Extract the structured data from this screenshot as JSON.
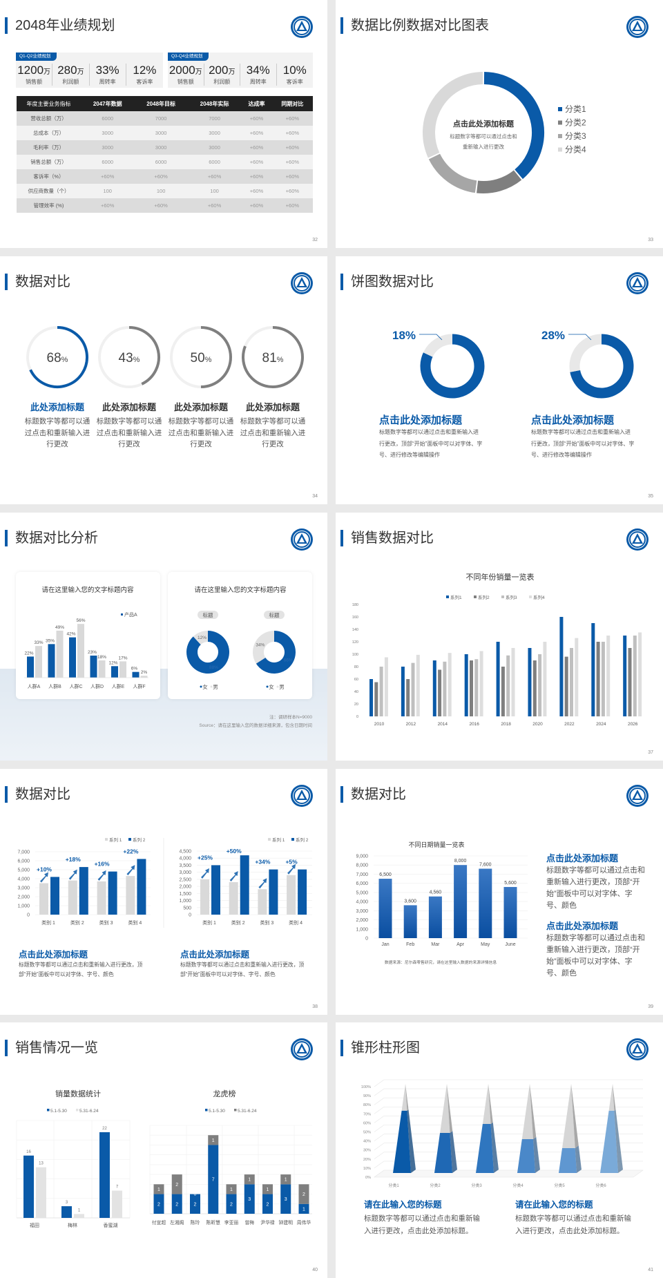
{
  "colors": {
    "blue": "#0a5aa8",
    "dark_gray": "#7f7f7f",
    "mid_gray": "#a6a6a6",
    "light_gray": "#d9d9d9",
    "track": "#f0f0f0"
  },
  "logo": {
    "icon": "school-emblem-logo"
  },
  "s32": {
    "title": "2048年业绩规划",
    "page": "32",
    "kpi_groups": [
      {
        "tag": "Q1-Q2业绩规划",
        "items": [
          {
            "value": "1200",
            "unit": "万",
            "label": "销售额"
          },
          {
            "value": "280",
            "unit": "万",
            "label": "利润额"
          },
          {
            "value": "33%",
            "unit": "",
            "label": "周转率"
          },
          {
            "value": "12%",
            "unit": "",
            "label": "客诉率"
          }
        ]
      },
      {
        "tag": "Q3-Q4业绩规划",
        "items": [
          {
            "value": "2000",
            "unit": "万",
            "label": "销售额"
          },
          {
            "value": "200",
            "unit": "万",
            "label": "利润额"
          },
          {
            "value": "34%",
            "unit": "",
            "label": "周转率"
          },
          {
            "value": "10%",
            "unit": "",
            "label": "客诉率"
          }
        ]
      }
    ],
    "table": {
      "headers": [
        "年度主要业务指标",
        "2047年数据",
        "2048年目标",
        "2048年实际",
        "达成率",
        "同期对比"
      ],
      "rows": [
        [
          "营收总额（万）",
          "6000",
          "7000",
          "7000",
          "+60%",
          "+60%"
        ],
        [
          "总成本（万）",
          "3000",
          "3000",
          "3000",
          "+60%",
          "+60%"
        ],
        [
          "毛利率（万）",
          "3000",
          "3000",
          "3000",
          "+60%",
          "+60%"
        ],
        [
          "销售总额（万）",
          "6000",
          "6000",
          "6000",
          "+60%",
          "+60%"
        ],
        [
          "客诉率（%）",
          "+60%",
          "+60%",
          "+60%",
          "+60%",
          "+60%"
        ],
        [
          "供应商数量（个）",
          "100",
          "100",
          "100",
          "+60%",
          "+60%"
        ],
        [
          "管理效率 (%)",
          "+60%",
          "+60%",
          "+60%",
          "+60%",
          "+60%"
        ]
      ]
    }
  },
  "s33": {
    "title": "数据比例数据对比图表",
    "page": "33",
    "center_title": "点击此处添加标题",
    "center_text_1": "标题数字等都可以通过点击和",
    "center_text_2": "重新输入进行更改"
  },
  "s34": {
    "title": "数据对比",
    "page": "34",
    "items": [
      {
        "value": "68",
        "unit": "%",
        "pct": 68,
        "title": "此处添加标题",
        "text": "标题数字等都可以通过点击和重新输入进行更改",
        "highlight": true
      },
      {
        "value": "43",
        "unit": "%",
        "pct": 43,
        "title": "此处添加标题",
        "text": "标题数字等都可以通过点击和重新输入进行更改",
        "highlight": false
      },
      {
        "value": "50",
        "unit": "%",
        "pct": 50,
        "title": "此处添加标题",
        "text": "标题数字等都可以通过点击和重新输入进行更改",
        "highlight": false
      },
      {
        "value": "81",
        "unit": "%",
        "pct": 81,
        "title": "此处添加标题",
        "text": "标题数字等都可以通过点击和重新输入进行更改",
        "highlight": false
      }
    ]
  },
  "s35": {
    "title": "饼图数据对比",
    "page": "35",
    "items": [
      {
        "label": "18%",
        "pct": 18,
        "title": "点击此处添加标题",
        "text": "标题数字等都可以通过点击和重新输入进行更改，顶部“开始”面板中可以对字体、字号、进行修改等编辑操作"
      },
      {
        "label": "28%",
        "pct": 28,
        "title": "点击此处添加标题",
        "text": "标题数字等都可以通过点击和重新输入进行更改，顶部“开始”面板中可以对字体、字号、进行修改等编辑操作"
      }
    ]
  },
  "s36": {
    "title": "数据对比分析",
    "page": "36",
    "card1_title": "请在这里输入您的文字标题内容",
    "card2_title": "请在这里输入您的文字标题内容",
    "pill1": "标题",
    "pill2": "标题",
    "note": "注：调研样本N=9000",
    "source": "Source：请在这里输入您的数据详细来源，包含日期时间"
  },
  "s37": {
    "title": "销售数据对比",
    "page": "37"
  },
  "s38": {
    "title": "数据对比",
    "page": "38",
    "left_title": "点击此处添加标题",
    "left_text": "标题数字等都可以通过点击和重新输入进行更改，顶部“开始”面板中可以对字体、字号、颜色",
    "right_title": "点击此处添加标题",
    "right_text": "标题数字等都可以通过点击和重新输入进行更改，顶部“开始”面板中可以对字体、字号、颜色"
  },
  "s39": {
    "title": "数据对比",
    "page": "39",
    "source": "数据来源：尼尔森零售研究，请在这里输入数据的来源详情信息",
    "blocks": [
      {
        "title": "点击此处添加标题",
        "text": "标题数字等都可以通过点击和重新输入进行更改，顶部“开始”面板中可以对字体、字号、颜色"
      },
      {
        "title": "点击此处添加标题",
        "text": "标题数字等都可以通过点击和重新输入进行更改，顶部“开始”面板中可以对字体、字号、颜色"
      }
    ]
  },
  "s40": {
    "title": "销售情况一览",
    "page": "40"
  },
  "s41": {
    "title": "锥形柱形图",
    "page": "41",
    "blocks": [
      {
        "title": "请在此输入您的标题",
        "text": "标题数字等都可以通过点击和重新输入进行更改，点击此处添加标题。"
      },
      {
        "title": "请在此输入您的标题",
        "text": "标题数字等都可以通过点击和重新输入进行更改，点击此处添加标题。"
      }
    ]
  },
  "chart_data": [
    {
      "type": "pie",
      "donut": true,
      "categories": [
        "分类1",
        "分类2",
        "分类3",
        "分类4"
      ],
      "values": [
        39,
        13,
        16,
        32
      ],
      "colors": [
        "#0a5aa8",
        "#7f7f7f",
        "#a6a6a6",
        "#d9d9d9"
      ],
      "legend": "right"
    },
    {
      "type": "bar",
      "title": "请在这里输入您的文字标题内容",
      "categories": [
        "人群A",
        "人群B",
        "人群C",
        "人群D",
        "人群E",
        "人群F"
      ],
      "series": [
        {
          "name": "产品A",
          "values": [
            22,
            35,
            42,
            23,
            12,
            6
          ],
          "labels": [
            "22%",
            "35%",
            "42%",
            "23%",
            "12%",
            "6%"
          ],
          "color": "#0a5aa8"
        },
        {
          "values": [
            33,
            49,
            56,
            18,
            17,
            2
          ],
          "labels": [
            "33%",
            "49%",
            "56%",
            "18%",
            "17%",
            "2%"
          ],
          "color": "#d9d9d9"
        }
      ],
      "unit": "%",
      "legend": "top-right",
      "grid": false
    },
    {
      "type": "pie",
      "donut": true,
      "categories": [
        "女",
        "男"
      ],
      "values": [
        88,
        12
      ],
      "labels": [
        "88%",
        "12%"
      ],
      "colors": [
        "#0a5aa8",
        "#e3e3e3"
      ],
      "legend": "bottom"
    },
    {
      "type": "pie",
      "donut": true,
      "categories": [
        "女",
        "男"
      ],
      "values": [
        66,
        34
      ],
      "labels": [
        "66%",
        "34%"
      ],
      "colors": [
        "#0a5aa8",
        "#e3e3e3"
      ],
      "legend": "bottom"
    },
    {
      "type": "bar",
      "title": "不同年份销量一览表",
      "categories": [
        "2010",
        "2012",
        "2014",
        "2016",
        "2018",
        "2020",
        "2022",
        "2024",
        "2026"
      ],
      "series": [
        {
          "name": "系列1",
          "values": [
            60,
            80,
            90,
            100,
            120,
            110,
            160,
            150,
            130
          ],
          "color": "#0a5aa8"
        },
        {
          "name": "系列2",
          "values": [
            55,
            60,
            75,
            90,
            80,
            90,
            96,
            120,
            110
          ],
          "color": "#7f7f7f"
        },
        {
          "name": "系列3",
          "values": [
            80,
            86,
            88,
            92,
            98,
            100,
            110,
            120,
            130
          ],
          "color": "#bfbfbf"
        },
        {
          "name": "系列4",
          "values": [
            95,
            99,
            102,
            105,
            110,
            120,
            126,
            130,
            135
          ],
          "color": "#dedede"
        }
      ],
      "ylim": [
        0,
        180
      ],
      "yticks": [
        "0",
        "20",
        "40",
        "60",
        "80",
        "100",
        "120",
        "140",
        "160",
        "180"
      ],
      "legend": "top",
      "grid": false
    },
    {
      "type": "bar",
      "categories": [
        "类别 1",
        "类别 2",
        "类别 3",
        "类别 4"
      ],
      "series": [
        {
          "name": "系列 1",
          "values": [
            3500,
            3800,
            3700,
            4300
          ],
          "color": "#d9d9d9"
        },
        {
          "name": "系列 2",
          "values": [
            4200,
            5300,
            4800,
            6200
          ],
          "color": "#0a5aa8"
        }
      ],
      "annotations": [
        "+10%",
        "+18%",
        "+16%",
        "+22%"
      ],
      "ylim": [
        0,
        7000
      ],
      "yticks": [
        "0",
        "1,000",
        "2,000",
        "3,000",
        "4,000",
        "5,000",
        "6,000",
        "7,000"
      ],
      "legend": "top-right",
      "grid": true
    },
    {
      "type": "bar",
      "categories": [
        "类别 1",
        "类别 2",
        "类别 3",
        "类别 4"
      ],
      "series": [
        {
          "name": "系列 1",
          "values": [
            2500,
            2300,
            1800,
            2800
          ],
          "color": "#d9d9d9"
        },
        {
          "name": "系列 2",
          "values": [
            3500,
            4200,
            3200,
            3200
          ],
          "color": "#0a5aa8"
        }
      ],
      "annotations": [
        "+25%",
        "+50%",
        "+34%",
        "+5%"
      ],
      "ylim": [
        0,
        4500
      ],
      "yticks": [
        "0",
        "500",
        "1,000",
        "1,500",
        "2,000",
        "2,500",
        "3,000",
        "3,500",
        "4,000",
        "4,500"
      ],
      "legend": "top-right",
      "grid": true
    },
    {
      "type": "bar",
      "title": "不同日期销量一览表",
      "categories": [
        "Jan",
        "Feb",
        "Mar",
        "Apr",
        "May",
        "June"
      ],
      "series": [
        {
          "values": [
            6500,
            3600,
            4560,
            8000,
            7600,
            5600
          ],
          "labels": [
            "6,500",
            "3,600",
            "4,560",
            "8,000",
            "7,600",
            "5,600"
          ],
          "color": "#0a5aa8"
        }
      ],
      "ylim": [
        0,
        9000
      ],
      "yticks": [
        "0",
        "1,000",
        "2,000",
        "3,000",
        "4,000",
        "5,000",
        "6,000",
        "7,000",
        "8,000",
        "9,000"
      ],
      "grid": true
    },
    {
      "type": "bar",
      "title": "销量数据统计",
      "categories": [
        "福田",
        "梅林",
        "香蜜湖"
      ],
      "series": [
        {
          "name": "5.1-5.30",
          "values": [
            16,
            3,
            22
          ],
          "color": "#0a5aa8"
        },
        {
          "name": "5.31-6.24",
          "values": [
            13,
            1,
            7
          ],
          "color": "#e3e3e3"
        }
      ],
      "ylim": [
        0,
        25
      ],
      "legend": "top",
      "grid": true
    },
    {
      "type": "bar",
      "stacked": true,
      "title": "龙虎榜",
      "categories": [
        "付宣超",
        "左湘阁",
        "陈玲",
        "陈昕慧",
        "李亚丽",
        "曾梅",
        "尹华禄",
        "钟建明",
        "周伟华"
      ],
      "series": [
        {
          "name": "5.1-5.30",
          "values": [
            2,
            2,
            2,
            7,
            2,
            3,
            2,
            3,
            1
          ],
          "color": "#0a5aa8"
        },
        {
          "name": "5.31-6.24",
          "values": [
            1,
            2,
            0,
            1,
            1,
            1,
            1,
            1,
            2
          ],
          "color": "#7f7f7f"
        }
      ],
      "ylim": [
        0,
        9
      ],
      "legend": "top",
      "grid": true
    },
    {
      "type": "bar",
      "shape": "cone",
      "categories": [
        "分类1",
        "分类2",
        "分类3",
        "分类4",
        "分类5",
        "分类6"
      ],
      "values": [
        70,
        45,
        55,
        38,
        28,
        70
      ],
      "colors": [
        "#0a5aa8",
        "#1f68b4",
        "#2f76bf",
        "#4a88c9",
        "#5f97d1",
        "#7aaad8"
      ],
      "ylim": [
        0,
        100
      ],
      "yticks": [
        "0%",
        "10%",
        "20%",
        "30%",
        "40%",
        "50%",
        "60%",
        "70%",
        "80%",
        "90%",
        "100%"
      ],
      "grid": true
    }
  ]
}
